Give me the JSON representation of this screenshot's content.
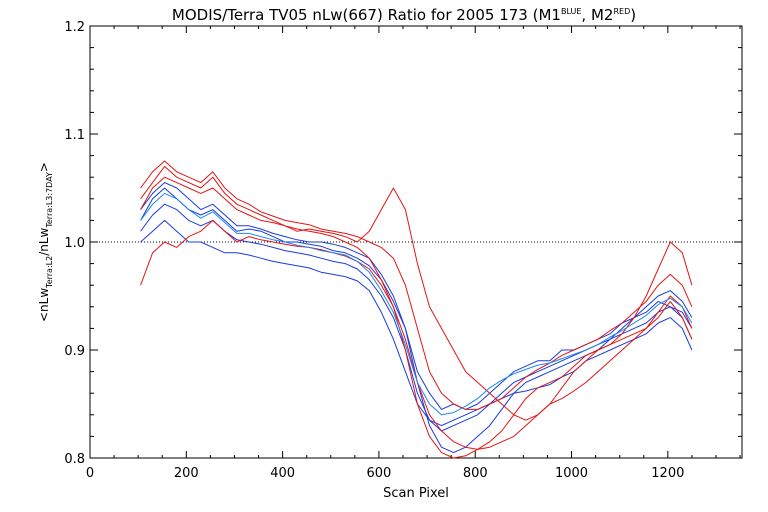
{
  "chart_data": {
    "type": "line",
    "title": {
      "main": "MODIS/Terra TV05 nLw(667) Ratio for 2005 173 (M1",
      "m1_sup": "BLUE",
      "sep": ", M2",
      "m2_sup": "RED",
      "close": ")"
    },
    "xlabel": "Scan Pixel",
    "ylabel": {
      "open": "<nLw",
      "sub1": "Terra:L2",
      "mid": "/nLw",
      "sub2": "Terra:L3:7DAY",
      "close": ">"
    },
    "xlim": [
      0,
      1354
    ],
    "ylim": [
      0.8,
      1.2
    ],
    "x_ticks": [
      0,
      200,
      400,
      600,
      800,
      1000,
      1200
    ],
    "x_tick_labels": [
      "0",
      "200",
      "400",
      "600",
      "800",
      "1000",
      "1200"
    ],
    "y_ticks": [
      0.8,
      0.9,
      1.0,
      1.1,
      1.2
    ],
    "y_tick_labels": [
      "0.8",
      "0.9",
      "1.0",
      "1.1",
      "1.2"
    ],
    "reference_line": 1.0,
    "grid": false,
    "colors": {
      "m1": "#1a3cdc",
      "m2": "#e41414",
      "m2_alt": "#1e88f0"
    },
    "x": [
      105,
      130,
      155,
      180,
      205,
      230,
      255,
      280,
      305,
      330,
      355,
      380,
      405,
      430,
      455,
      480,
      505,
      530,
      555,
      580,
      605,
      630,
      655,
      680,
      705,
      730,
      755,
      780,
      805,
      830,
      855,
      880,
      905,
      930,
      955,
      980,
      1005,
      1030,
      1055,
      1080,
      1105,
      1130,
      1155,
      1180,
      1205,
      1230,
      1250
    ],
    "series": [
      {
        "group": "m1",
        "values": [
          1.02,
          1.04,
          1.05,
          1.04,
          1.03,
          1.025,
          1.03,
          1.02,
          1.01,
          1.012,
          1.01,
          1.005,
          1.0,
          1.0,
          0.998,
          0.996,
          0.992,
          0.99,
          0.985,
          0.978,
          0.965,
          0.945,
          0.92,
          0.88,
          0.86,
          0.845,
          0.85,
          0.845,
          0.85,
          0.86,
          0.87,
          0.88,
          0.885,
          0.89,
          0.89,
          0.9,
          0.9,
          0.905,
          0.91,
          0.915,
          0.925,
          0.93,
          0.935,
          0.945,
          0.94,
          0.935,
          0.92
        ]
      },
      {
        "group": "m1",
        "values": [
          1.0,
          1.01,
          1.02,
          1.01,
          1.0,
          1.0,
          0.995,
          0.99,
          0.99,
          0.988,
          0.985,
          0.982,
          0.98,
          0.978,
          0.976,
          0.972,
          0.97,
          0.968,
          0.964,
          0.955,
          0.935,
          0.91,
          0.88,
          0.85,
          0.835,
          0.83,
          0.835,
          0.84,
          0.845,
          0.85,
          0.855,
          0.86,
          0.862,
          0.865,
          0.868,
          0.875,
          0.88,
          0.89,
          0.895,
          0.9,
          0.905,
          0.91,
          0.915,
          0.925,
          0.93,
          0.92,
          0.9
        ]
      },
      {
        "group": "m1",
        "values": [
          1.03,
          1.045,
          1.055,
          1.05,
          1.04,
          1.03,
          1.035,
          1.025,
          1.015,
          1.015,
          1.012,
          1.008,
          1.005,
          1.002,
          1.0,
          1.0,
          0.998,
          0.995,
          0.99,
          0.985,
          0.97,
          0.95,
          0.92,
          0.87,
          0.83,
          0.81,
          0.805,
          0.81,
          0.82,
          0.83,
          0.845,
          0.86,
          0.87,
          0.875,
          0.88,
          0.885,
          0.89,
          0.895,
          0.9,
          0.91,
          0.92,
          0.93,
          0.94,
          0.95,
          0.955,
          0.945,
          0.93
        ]
      },
      {
        "group": "m1",
        "values": [
          1.01,
          1.025,
          1.035,
          1.03,
          1.02,
          1.015,
          1.02,
          1.01,
          1.002,
          1.0,
          0.998,
          0.995,
          0.992,
          0.99,
          0.988,
          0.985,
          0.982,
          0.98,
          0.975,
          0.965,
          0.95,
          0.93,
          0.9,
          0.86,
          0.835,
          0.825,
          0.83,
          0.835,
          0.84,
          0.85,
          0.86,
          0.87,
          0.875,
          0.88,
          0.885,
          0.89,
          0.895,
          0.9,
          0.905,
          0.91,
          0.915,
          0.92,
          0.925,
          0.935,
          0.94,
          0.93,
          0.91
        ]
      },
      {
        "group": "m2",
        "values": [
          1.04,
          1.055,
          1.07,
          1.06,
          1.055,
          1.05,
          1.06,
          1.045,
          1.035,
          1.03,
          1.025,
          1.02,
          1.015,
          1.01,
          1.012,
          1.01,
          1.008,
          1.005,
          1.0,
          1.01,
          1.03,
          1.05,
          1.03,
          0.98,
          0.94,
          0.92,
          0.9,
          0.88,
          0.87,
          0.86,
          0.85,
          0.84,
          0.835,
          0.84,
          0.85,
          0.865,
          0.88,
          0.89,
          0.9,
          0.905,
          0.915,
          0.93,
          0.95,
          0.975,
          1.0,
          0.99,
          0.96
        ]
      },
      {
        "group": "m2",
        "values": [
          1.03,
          1.05,
          1.06,
          1.055,
          1.05,
          1.045,
          1.05,
          1.04,
          1.03,
          1.025,
          1.02,
          1.018,
          1.015,
          1.012,
          1.01,
          1.008,
          1.005,
          1.0,
          0.995,
          0.985,
          0.965,
          0.94,
          0.9,
          0.85,
          0.82,
          0.805,
          0.8,
          0.802,
          0.808,
          0.815,
          0.825,
          0.84,
          0.855,
          0.865,
          0.87,
          0.875,
          0.885,
          0.895,
          0.9,
          0.905,
          0.91,
          0.915,
          0.92,
          0.93,
          0.945,
          0.93,
          0.91
        ]
      },
      {
        "group": "m2",
        "values": [
          0.96,
          0.99,
          1.0,
          0.995,
          1.005,
          1.01,
          1.02,
          1.01,
          1.0,
          1.005,
          1.002,
          1.0,
          0.998,
          0.996,
          0.995,
          0.993,
          0.99,
          0.987,
          0.982,
          0.975,
          0.96,
          0.94,
          0.91,
          0.87,
          0.84,
          0.825,
          0.815,
          0.81,
          0.808,
          0.81,
          0.815,
          0.82,
          0.83,
          0.84,
          0.85,
          0.855,
          0.862,
          0.87,
          0.88,
          0.89,
          0.9,
          0.91,
          0.92,
          0.935,
          0.95,
          0.94,
          0.92
        ]
      },
      {
        "group": "m2",
        "values": [
          1.05,
          1.065,
          1.075,
          1.065,
          1.06,
          1.055,
          1.065,
          1.05,
          1.04,
          1.035,
          1.028,
          1.024,
          1.02,
          1.018,
          1.016,
          1.012,
          1.01,
          1.008,
          1.005,
          1.0,
          0.995,
          0.985,
          0.96,
          0.92,
          0.88,
          0.86,
          0.85,
          0.845,
          0.845,
          0.85,
          0.855,
          0.865,
          0.875,
          0.882,
          0.888,
          0.895,
          0.9,
          0.905,
          0.91,
          0.918,
          0.925,
          0.935,
          0.945,
          0.96,
          0.97,
          0.96,
          0.94
        ]
      },
      {
        "group": "m2_alt",
        "values": [
          1.02,
          1.035,
          1.045,
          1.04,
          1.03,
          1.022,
          1.028,
          1.018,
          1.008,
          1.008,
          1.005,
          1.002,
          1.0,
          0.997,
          0.995,
          0.992,
          0.99,
          0.988,
          0.982,
          0.972,
          0.955,
          0.935,
          0.905,
          0.87,
          0.85,
          0.84,
          0.842,
          0.848,
          0.855,
          0.865,
          0.872,
          0.878,
          0.882,
          0.886,
          0.888,
          0.892,
          0.896,
          0.9,
          0.905,
          0.912,
          0.918,
          0.925,
          0.932,
          0.942,
          0.948,
          0.94,
          0.925
        ]
      }
    ]
  }
}
